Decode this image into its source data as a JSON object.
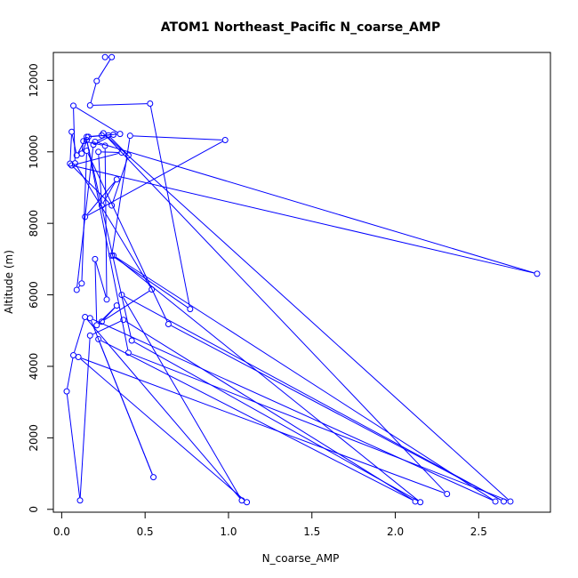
{
  "chart_data": {
    "type": "line",
    "title": "ATOM1 Northeast_Pacific N_coarse_AMP",
    "xlabel": "N_coarse_AMP",
    "ylabel": "Altitude (m)",
    "xlim": [
      -0.05,
      2.93
    ],
    "ylim": [
      -80,
      12780
    ],
    "xticks": [
      "0.0",
      "0.5",
      "1.0",
      "1.5",
      "2.0",
      "2.5"
    ],
    "yticks": [
      "0",
      "2000",
      "4000",
      "6000",
      "8000",
      "10000",
      "12000"
    ],
    "grid": false,
    "legend": "none",
    "series_color": "#0000ff",
    "series": [
      {
        "style": "line-with-open-circles",
        "points": [
          [
            0.26,
            12650
          ],
          [
            0.3,
            12650
          ],
          [
            0.21,
            11980
          ],
          [
            0.17,
            11300
          ],
          [
            0.53,
            11350
          ],
          [
            0.77,
            5600
          ],
          [
            0.3,
            7100
          ],
          [
            0.41,
            10450
          ],
          [
            0.98,
            10330
          ],
          [
            0.14,
            8180
          ],
          [
            0.33,
            9230
          ],
          [
            0.24,
            8500
          ],
          [
            0.22,
            10000
          ],
          [
            0.36,
            9980
          ],
          [
            0.06,
            9620
          ],
          [
            2.85,
            6590
          ],
          [
            0.2,
            10280
          ],
          [
            0.28,
            10460
          ],
          [
            0.4,
            9900
          ],
          [
            0.3,
            8500
          ],
          [
            0.05,
            9670
          ],
          [
            0.06,
            10560
          ],
          [
            0.09,
            9900
          ],
          [
            0.15,
            10420
          ],
          [
            0.24,
            10460
          ],
          [
            0.35,
            10500
          ],
          [
            0.07,
            11290
          ],
          [
            0.08,
            9680
          ],
          [
            0.54,
            6150
          ],
          [
            0.24,
            5250
          ],
          [
            0.33,
            5700
          ],
          [
            0.21,
            5150
          ],
          [
            0.2,
            7000
          ],
          [
            0.27,
            5870
          ],
          [
            0.26,
            10170
          ],
          [
            0.13,
            10300
          ],
          [
            0.12,
            9950
          ],
          [
            0.16,
            10420
          ],
          [
            0.31,
            10480
          ],
          [
            0.19,
            10200
          ],
          [
            0.09,
            6140
          ],
          [
            0.12,
            6320
          ],
          [
            0.15,
            10030
          ],
          [
            0.64,
            5180
          ],
          [
            2.65,
            220
          ],
          [
            0.36,
            6000
          ],
          [
            1.08,
            250
          ],
          [
            0.14,
            5380
          ],
          [
            0.07,
            4310
          ],
          [
            0.03,
            3300
          ],
          [
            0.11,
            250
          ],
          [
            0.17,
            4860
          ],
          [
            0.37,
            5300
          ],
          [
            2.12,
            220
          ],
          [
            0.22,
            4760
          ],
          [
            0.55,
            900
          ],
          [
            0.17,
            5350
          ],
          [
            2.6,
            220
          ],
          [
            0.31,
            7100
          ],
          [
            2.15,
            200
          ],
          [
            0.42,
            4720
          ],
          [
            0.15,
            10330
          ],
          [
            0.4,
            4380
          ],
          [
            2.69,
            220
          ],
          [
            0.25,
            10520
          ],
          [
            2.31,
            430
          ],
          [
            0.1,
            4260
          ],
          [
            1.11,
            200
          ]
        ]
      }
    ]
  }
}
